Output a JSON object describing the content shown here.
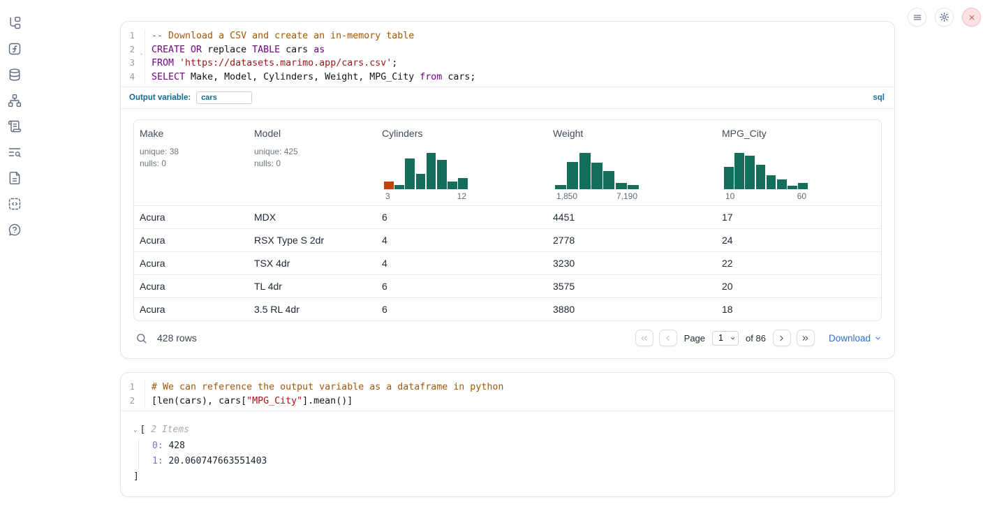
{
  "colors": {
    "keyword": "#770088",
    "comment": "#aa5500",
    "string": "#aa1111",
    "hist_green": "#156e5c",
    "hist_orange": "#c2410c",
    "accent_blue": "#2b6fd4",
    "outvar_teal": "#11698e",
    "badge_blue": "#1c6ea4",
    "close_red": "#d95757"
  },
  "sidebar": {
    "items": [
      {
        "name": "file-explorer",
        "icon": "file-tree-icon"
      },
      {
        "name": "variables",
        "icon": "function-square-icon"
      },
      {
        "name": "datasources",
        "icon": "database-icon"
      },
      {
        "name": "dependency-graph",
        "icon": "network-icon"
      },
      {
        "name": "scratchpad",
        "icon": "scroll-icon"
      },
      {
        "name": "logs",
        "icon": "text-search-icon"
      },
      {
        "name": "documentation",
        "icon": "file-text-icon"
      },
      {
        "name": "snippets",
        "icon": "code-snippet-icon"
      },
      {
        "name": "chat",
        "icon": "help-bubble-icon"
      }
    ]
  },
  "topbar": {
    "buttons": [
      {
        "name": "notebook-menu",
        "icon": "hamburger-icon"
      },
      {
        "name": "settings",
        "icon": "gear-icon"
      },
      {
        "name": "shutdown",
        "icon": "close-x-icon"
      }
    ]
  },
  "code_cells": [
    {
      "language_badge": "sql",
      "output_variable_label": "Output variable:",
      "output_variable_value": "cars",
      "lines": [
        {
          "num": "1",
          "tokens": [
            {
              "text": "-- Download a CSV and create an in-memory table",
              "type": "comment"
            }
          ]
        },
        {
          "num": "2",
          "fold": true,
          "tokens": [
            {
              "text": "CREATE OR",
              "type": "keyword"
            },
            {
              "text": " replace ",
              "type": "plain"
            },
            {
              "text": "TABLE",
              "type": "keyword"
            },
            {
              "text": " cars ",
              "type": "plain"
            },
            {
              "text": "as",
              "type": "keyword"
            }
          ]
        },
        {
          "num": "3",
          "tokens": [
            {
              "text": "FROM",
              "type": "keyword"
            },
            {
              "text": " ",
              "type": "plain"
            },
            {
              "text": "'https://datasets.marimo.app/cars.csv'",
              "type": "string"
            },
            {
              "text": ";",
              "type": "plain"
            }
          ]
        },
        {
          "num": "4",
          "tokens": [
            {
              "text": "SELECT",
              "type": "keyword"
            },
            {
              "text": " Make, Model, Cylinders, Weight, MPG_City ",
              "type": "plain"
            },
            {
              "text": "from",
              "type": "keyword"
            },
            {
              "text": " cars;",
              "type": "plain"
            }
          ]
        }
      ]
    },
    {
      "lines": [
        {
          "num": "1",
          "tokens": [
            {
              "text": "# We can reference the output variable as a dataframe in python",
              "type": "comment"
            }
          ]
        },
        {
          "num": "2",
          "tokens": [
            {
              "text": "[len(cars), cars[",
              "type": "plain"
            },
            {
              "text": "\"MPG_City\"",
              "type": "string"
            },
            {
              "text": "].mean()]",
              "type": "plain"
            }
          ]
        }
      ]
    }
  ],
  "table": {
    "columns": [
      {
        "name": "Make",
        "stats": [
          "unique: 38",
          "nulls: 0"
        ]
      },
      {
        "name": "Model",
        "stats": [
          "unique: 425",
          "nulls: 0"
        ]
      },
      {
        "name": "Cylinders",
        "histogram": {
          "min_label": "3",
          "max_label": "12",
          "bars": [
            {
              "h": 0.22,
              "c": "orange"
            },
            {
              "h": 0.12
            },
            {
              "h": 0.85
            },
            {
              "h": 0.42
            },
            {
              "h": 1.0
            },
            {
              "h": 0.8
            },
            {
              "h": 0.22
            },
            {
              "h": 0.3
            }
          ]
        }
      },
      {
        "name": "Weight",
        "histogram": {
          "min_label": "1,850",
          "max_label": "7,190",
          "bars": [
            {
              "h": 0.12
            },
            {
              "h": 0.75
            },
            {
              "h": 1.0
            },
            {
              "h": 0.73
            },
            {
              "h": 0.5
            },
            {
              "h": 0.17
            },
            {
              "h": 0.12
            }
          ]
        }
      },
      {
        "name": "MPG_City",
        "histogram": {
          "min_label": "10",
          "max_label": "60",
          "bars": [
            {
              "h": 0.62
            },
            {
              "h": 1.0
            },
            {
              "h": 0.92
            },
            {
              "h": 0.68
            },
            {
              "h": 0.38
            },
            {
              "h": 0.27
            },
            {
              "h": 0.1
            },
            {
              "h": 0.18
            }
          ]
        }
      }
    ],
    "rows": [
      [
        "Acura",
        "MDX",
        "6",
        "4451",
        "17"
      ],
      [
        "Acura",
        "RSX Type S 2dr",
        "4",
        "2778",
        "24"
      ],
      [
        "Acura",
        "TSX 4dr",
        "4",
        "3230",
        "22"
      ],
      [
        "Acura",
        "TL 4dr",
        "6",
        "3575",
        "20"
      ],
      [
        "Acura",
        "3.5 RL 4dr",
        "6",
        "3880",
        "18"
      ]
    ],
    "footer": {
      "row_count": "428 rows",
      "page_label": "Page",
      "page_value": "1",
      "of_label": "of 86",
      "download_label": "Download"
    }
  },
  "python_output": {
    "open_bracket": "[",
    "items_label": "2 Items",
    "entries": [
      {
        "key": "0",
        "value": "428"
      },
      {
        "key": "1",
        "value": "20.060747663551403"
      }
    ],
    "close_bracket": "]"
  }
}
